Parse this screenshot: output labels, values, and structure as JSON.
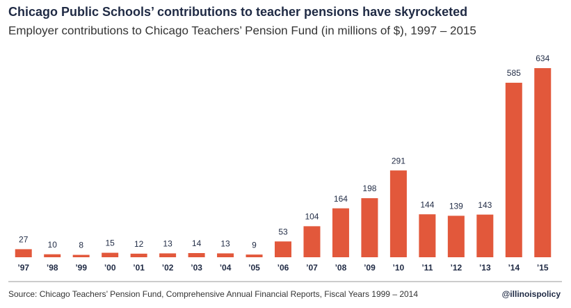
{
  "chart_data": {
    "type": "bar",
    "title": "Chicago Public Schools’ contributions to teacher pensions have skyrocketed",
    "subtitle": "Employer contributions to Chicago Teachers’ Pension Fund (in millions of $), 1997 – 2015",
    "categories": [
      "’97",
      "’98",
      "’99",
      "’00",
      "’01",
      "’02",
      "’03",
      "’04",
      "’05",
      "’06",
      "’07",
      "’08",
      "’09",
      "’10",
      "’11",
      "’12",
      "’13",
      "’14",
      "’15"
    ],
    "values": [
      27,
      10,
      8,
      15,
      12,
      13,
      14,
      13,
      9,
      53,
      104,
      164,
      198,
      291,
      144,
      139,
      143,
      585,
      634
    ],
    "color": "#e2583b",
    "source": "Source: Chicago Teachers’ Pension Fund, Comprehensive Annual Financial Reports, Fiscal Years 1999 – 2014",
    "credit": "@illinoispolicy"
  }
}
